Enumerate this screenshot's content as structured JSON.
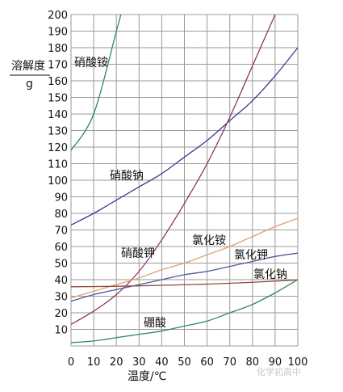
{
  "chart_data": {
    "type": "line",
    "xlabel": "温度/℃",
    "ylabel_top": "溶解度",
    "ylabel_bottom": "g",
    "xlim": [
      0,
      100
    ],
    "ylim": [
      0,
      200
    ],
    "grid": true,
    "x_ticks": [
      0,
      10,
      20,
      30,
      40,
      50,
      60,
      70,
      80,
      90,
      100
    ],
    "y_ticks": [
      10,
      20,
      30,
      40,
      50,
      60,
      70,
      80,
      90,
      100,
      110,
      120,
      130,
      140,
      150,
      160,
      170,
      180,
      190,
      200
    ],
    "series": [
      {
        "name": "硝酸铵",
        "color": "#2e8b57",
        "x": [
          0,
          10,
          20,
          22
        ],
        "y": [
          118,
          140,
          190,
          200
        ]
      },
      {
        "name": "硝酸钠",
        "color": "#3b3b8f",
        "x": [
          0,
          10,
          20,
          30,
          40,
          50,
          60,
          70,
          80,
          90,
          100
        ],
        "y": [
          73,
          80,
          88,
          96,
          104,
          114,
          124,
          136,
          148,
          163,
          180
        ]
      },
      {
        "name": "硝酸钾",
        "color": "#8b3a62",
        "x": [
          0,
          10,
          20,
          30,
          40,
          50,
          60,
          70,
          80,
          90
        ],
        "y": [
          13,
          21,
          31,
          45,
          64,
          86,
          110,
          138,
          169,
          200
        ]
      },
      {
        "name": "氯化铵",
        "color": "#e0a070",
        "x": [
          0,
          10,
          20,
          30,
          40,
          50,
          60,
          70,
          80,
          90,
          100
        ],
        "y": [
          29,
          33,
          37,
          41,
          46,
          50,
          55,
          60,
          66,
          72,
          77
        ]
      },
      {
        "name": "氯化钾",
        "color": "#4a5a9a",
        "x": [
          0,
          10,
          20,
          30,
          40,
          50,
          60,
          70,
          80,
          90,
          100
        ],
        "y": [
          27,
          31,
          34,
          37,
          40,
          43,
          45,
          48,
          51,
          54,
          56
        ]
      },
      {
        "name": "氯化钠",
        "color": "#8b4b3a",
        "x": [
          0,
          20,
          40,
          60,
          80,
          100
        ],
        "y": [
          35.7,
          36,
          36.6,
          37.3,
          38.4,
          39.8
        ]
      },
      {
        "name": "硼酸",
        "color": "#2e8b57",
        "x": [
          0,
          10,
          20,
          30,
          40,
          50,
          60,
          70,
          80,
          90,
          100
        ],
        "y": [
          2,
          3,
          5,
          7,
          9,
          12,
          15,
          20,
          25,
          32,
          40
        ]
      }
    ],
    "annotations": [
      {
        "text": "硝酸铵",
        "series": 0
      },
      {
        "text": "硝酸钠",
        "series": 1
      },
      {
        "text": "硝酸钾",
        "series": 2
      },
      {
        "text": "氯化铵",
        "series": 3
      },
      {
        "text": "氯化钾",
        "series": 4
      },
      {
        "text": "氯化钠",
        "series": 5
      },
      {
        "text": "硼酸",
        "series": 6
      }
    ]
  },
  "watermark": "化学初高中"
}
